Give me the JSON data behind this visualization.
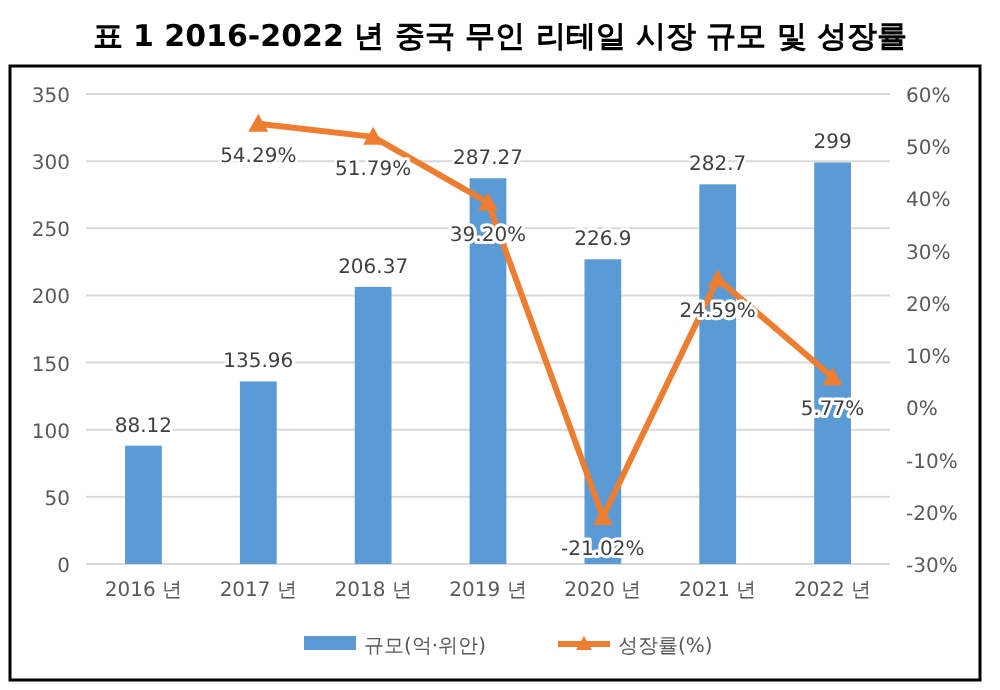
{
  "chart_data": {
    "type": "bar",
    "title": "표 1   2016-2022 년 중국 무인 리테일 시장 규모 및 성장률",
    "categories": [
      "2016 년",
      "2017 년",
      "2018 년",
      "2019 년",
      "2020 년",
      "2021 년",
      "2022 년"
    ],
    "series": [
      {
        "name": "규모(억·위안)",
        "color": "#5b9bd5",
        "values": [
          88.12,
          135.96,
          206.37,
          287.27,
          226.9,
          282.7,
          299
        ],
        "value_labels": [
          "88.12",
          "135.96",
          "206.37",
          "287.27",
          "226.9",
          "282.7",
          "299"
        ]
      },
      {
        "name": "성장률(%)",
        "type": "line",
        "axis": "y2",
        "color": "#ed7d31",
        "marker": "triangle",
        "values": [
          null,
          54.29,
          51.79,
          39.2,
          -21.02,
          24.59,
          5.77
        ],
        "value_labels": [
          null,
          "54.29%",
          "51.79%",
          "39.20%",
          "-21.02%",
          "24.59%",
          "5.77%"
        ]
      }
    ],
    "ylim": [
      0,
      350
    ],
    "yticks": [
      0,
      50,
      100,
      150,
      200,
      250,
      300,
      350
    ],
    "y2lim": [
      -30,
      60
    ],
    "y2ticks": [
      {
        "value": -30,
        "label": "-30%"
      },
      {
        "value": -20,
        "label": "-20%"
      },
      {
        "value": -10,
        "label": "-10%"
      },
      {
        "value": 0,
        "label": "0%"
      },
      {
        "value": 10,
        "label": "10%"
      },
      {
        "value": 20,
        "label": "20%"
      },
      {
        "value": 30,
        "label": "30%"
      },
      {
        "value": 40,
        "label": "40%"
      },
      {
        "value": 50,
        "label": "50%"
      },
      {
        "value": 60,
        "label": "60%"
      }
    ],
    "grid": "y",
    "legend": "bottom"
  }
}
